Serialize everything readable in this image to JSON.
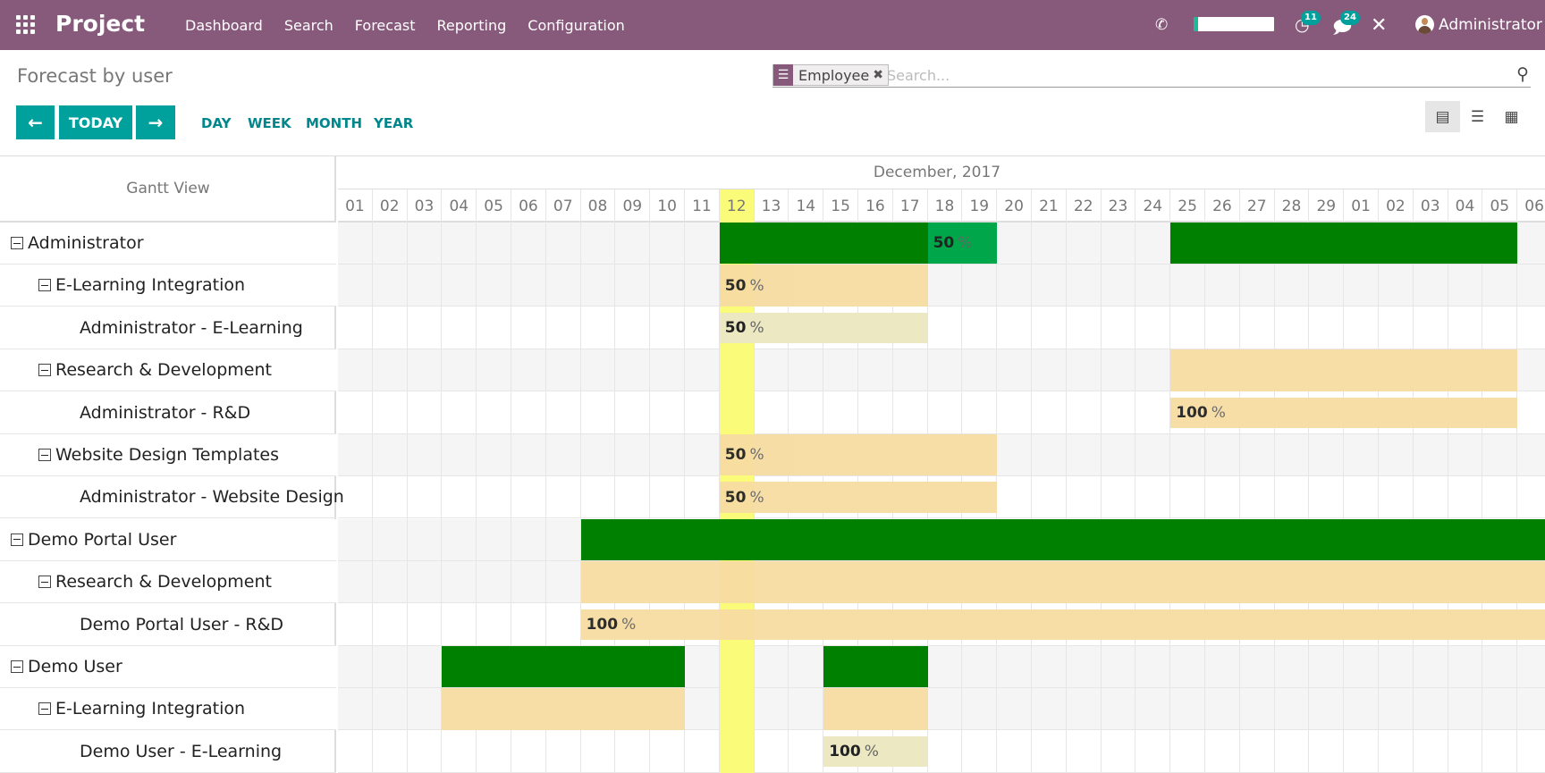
{
  "app": {
    "title": "Project"
  },
  "menu": [
    "Dashboard",
    "Search",
    "Forecast",
    "Reporting",
    "Configuration"
  ],
  "systray": {
    "activity_count": "11",
    "message_count": "24",
    "user": "Administrator"
  },
  "page": {
    "title": "Forecast by user"
  },
  "search": {
    "facet": "Employee",
    "placeholder": "Search..."
  },
  "controls": {
    "today": "TODAY",
    "scales": [
      "DAY",
      "WEEK",
      "MONTH",
      "YEAR"
    ]
  },
  "gantt": {
    "view_title": "Gantt View",
    "month": "December, 2017",
    "days": [
      "01",
      "02",
      "03",
      "04",
      "05",
      "06",
      "07",
      "08",
      "09",
      "10",
      "11",
      "12",
      "13",
      "14",
      "15",
      "16",
      "17",
      "18",
      "19",
      "20",
      "21",
      "22",
      "23",
      "24",
      "25",
      "26",
      "27",
      "28",
      "29",
      "01",
      "02",
      "03",
      "04",
      "05",
      "06"
    ],
    "today_index": 11,
    "rows": [
      {
        "label": "Administrator",
        "level": 0,
        "toggle": true
      },
      {
        "label": "E-Learning Integration",
        "level": 1,
        "toggle": true
      },
      {
        "label": "Administrator - E-Learning",
        "level": 2,
        "toggle": false
      },
      {
        "label": "Research & Development",
        "level": 1,
        "toggle": true
      },
      {
        "label": "Administrator - R&D",
        "level": 2,
        "toggle": false
      },
      {
        "label": "Website Design Templates",
        "level": 1,
        "toggle": true
      },
      {
        "label": "Administrator - Website Design",
        "level": 2,
        "toggle": false
      },
      {
        "label": "Demo Portal User",
        "level": 0,
        "toggle": true
      },
      {
        "label": "Research & Development",
        "level": 1,
        "toggle": true
      },
      {
        "label": "Demo Portal User - R&D",
        "level": 2,
        "toggle": false
      },
      {
        "label": "Demo User",
        "level": 0,
        "toggle": true
      },
      {
        "label": "E-Learning Integration",
        "level": 1,
        "toggle": true
      },
      {
        "label": "Demo User - E-Learning",
        "level": 2,
        "toggle": false
      }
    ],
    "bars": [
      {
        "row": 0,
        "start": 11,
        "end": 17,
        "kind": "green"
      },
      {
        "row": 0,
        "start": 17,
        "end": 19,
        "kind": "green2",
        "pct": "50"
      },
      {
        "row": 0,
        "start": 24,
        "end": 34,
        "kind": "green"
      },
      {
        "row": 1,
        "start": 11,
        "end": 17,
        "kind": "light",
        "pct": "50"
      },
      {
        "row": 2,
        "start": 11,
        "end": 17,
        "kind": "pale",
        "pct": "50"
      },
      {
        "row": 3,
        "start": 24,
        "end": 34,
        "kind": "light"
      },
      {
        "row": 4,
        "start": 24,
        "end": 34,
        "kind": "light",
        "pct": "100"
      },
      {
        "row": 5,
        "start": 11,
        "end": 19,
        "kind": "light",
        "pct": "50"
      },
      {
        "row": 6,
        "start": 11,
        "end": 19,
        "kind": "light",
        "pct": "50"
      },
      {
        "row": 7,
        "start": 7,
        "end": 35,
        "kind": "green"
      },
      {
        "row": 8,
        "start": 7,
        "end": 35,
        "kind": "light"
      },
      {
        "row": 9,
        "start": 7,
        "end": 35,
        "kind": "light",
        "pct": "100"
      },
      {
        "row": 10,
        "start": 3,
        "end": 10,
        "kind": "green"
      },
      {
        "row": 10,
        "start": 14,
        "end": 17,
        "kind": "green"
      },
      {
        "row": 11,
        "start": 3,
        "end": 10,
        "kind": "light"
      },
      {
        "row": 11,
        "start": 14,
        "end": 17,
        "kind": "light"
      },
      {
        "row": 12,
        "start": 14,
        "end": 17,
        "kind": "pale",
        "pct": "100"
      }
    ],
    "pct_sign": "%"
  }
}
